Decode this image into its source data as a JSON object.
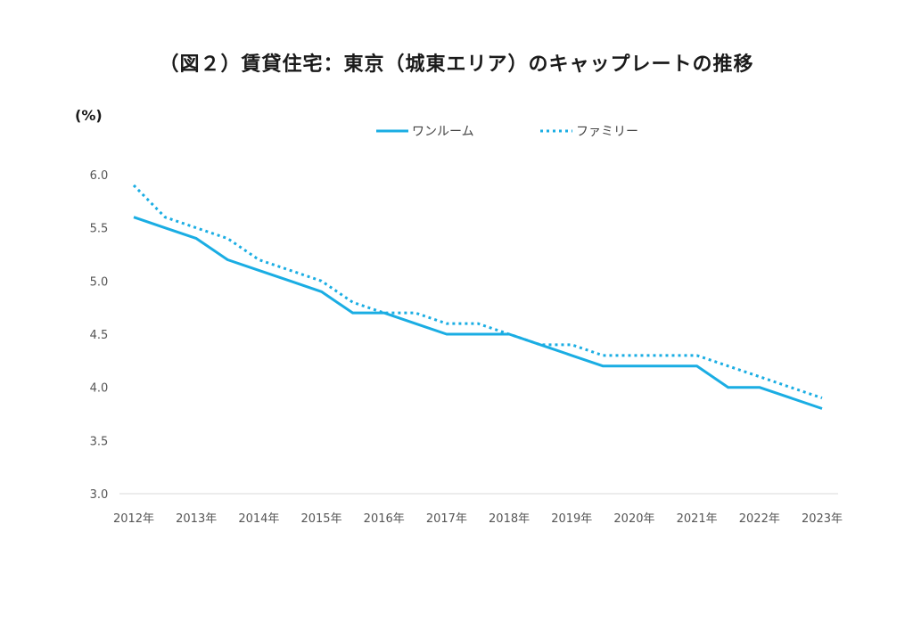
{
  "chart_data": {
    "type": "line",
    "title": "（図２）賃貸住宅：東京（城東エリア）のキャップレートの推移",
    "ylabel": "(%)",
    "xlabel": "",
    "ylim": [
      3.0,
      6.0
    ],
    "yticks": [
      "6.0",
      "5.5",
      "5.0",
      "4.5",
      "4.0",
      "3.5",
      "3.0"
    ],
    "categories": [
      "2012年",
      "2013年",
      "2014年",
      "2015年",
      "2016年",
      "2017年",
      "2018年",
      "2019年",
      "2020年",
      "2021年",
      "2022年",
      "2023年"
    ],
    "x": [
      2012,
      2012.5,
      2013,
      2013.5,
      2014,
      2014.5,
      2015,
      2015.5,
      2016,
      2016.5,
      2017,
      2017.5,
      2018,
      2018.5,
      2019,
      2019.5,
      2020,
      2020.5,
      2021,
      2021.5,
      2022,
      2022.5,
      2023
    ],
    "series": [
      {
        "name": "ワンルーム",
        "style": "solid",
        "color": "#1AADE3",
        "values": [
          5.6,
          5.5,
          5.4,
          5.2,
          5.1,
          5.0,
          4.9,
          4.7,
          4.7,
          4.6,
          4.5,
          4.5,
          4.5,
          4.4,
          4.3,
          4.2,
          4.2,
          4.2,
          4.2,
          4.0,
          4.0,
          3.9,
          3.8
        ]
      },
      {
        "name": "ファミリー",
        "style": "dotted",
        "color": "#1AADE3",
        "values": [
          5.9,
          5.6,
          5.5,
          5.4,
          5.2,
          5.1,
          5.0,
          4.8,
          4.7,
          4.7,
          4.6,
          4.6,
          4.5,
          4.4,
          4.4,
          4.3,
          4.3,
          4.3,
          4.3,
          4.2,
          4.1,
          4.0,
          3.9
        ]
      }
    ],
    "legend_position": "top-center",
    "grid": false
  }
}
